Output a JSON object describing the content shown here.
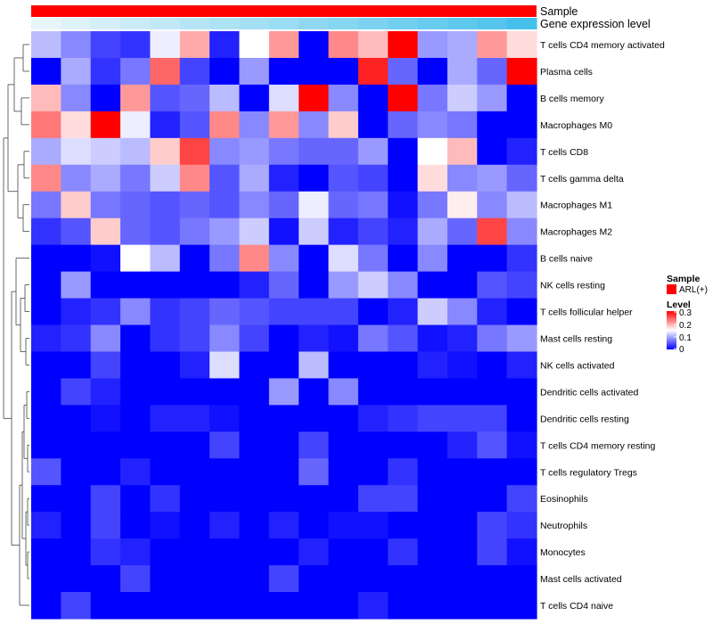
{
  "chart_data": {
    "type": "heatmap",
    "annotations": [
      "Sample",
      "Gene expression level"
    ],
    "rows": [
      "T cells CD4 memory activated",
      "Plasma cells",
      "B cells memory",
      "Macrophages M0",
      "T cells CD8",
      "T cells gamma delta",
      "Macrophages M1",
      "Macrophages M2",
      "B cells naive",
      "NK cells resting",
      "T cells follicular helper",
      "Mast cells resting",
      "NK cells activated",
      "Dendritic cells activated",
      "Dendritic cells resting",
      "T cells CD4 memory resting",
      "T cells regulatory  Tregs",
      "Eosinophils",
      "Neutrophils",
      "Monocytes",
      "Mast cells activated",
      "T cells CD4 naive"
    ],
    "values": [
      [
        0.11,
        0.08,
        0.04,
        0.03,
        0.14,
        0.2,
        0.02,
        0.15,
        0.21,
        0.0,
        0.22,
        0.19,
        0.3,
        0.09,
        0.1,
        0.21,
        0.17
      ],
      [
        0.0,
        0.1,
        0.03,
        0.07,
        0.24,
        0.04,
        0.0,
        0.09,
        0.0,
        0.0,
        0.0,
        0.28,
        0.06,
        0.0,
        0.1,
        0.06,
        0.3
      ],
      [
        0.19,
        0.08,
        0.0,
        0.21,
        0.05,
        0.06,
        0.11,
        0.0,
        0.13,
        0.3,
        0.08,
        0.0,
        0.3,
        0.07,
        0.12,
        0.09,
        0.0
      ],
      [
        0.23,
        0.17,
        0.3,
        0.14,
        0.02,
        0.05,
        0.22,
        0.08,
        0.21,
        0.08,
        0.18,
        0.0,
        0.06,
        0.08,
        0.07,
        0.0,
        0.0
      ],
      [
        0.1,
        0.13,
        0.12,
        0.11,
        0.18,
        0.26,
        0.08,
        0.09,
        0.07,
        0.06,
        0.06,
        0.09,
        0.0,
        0.15,
        0.19,
        0.0,
        0.02
      ],
      [
        0.22,
        0.08,
        0.1,
        0.07,
        0.12,
        0.22,
        0.05,
        0.1,
        0.02,
        0.0,
        0.05,
        0.04,
        0.0,
        0.17,
        0.08,
        0.09,
        0.06
      ],
      [
        0.07,
        0.18,
        0.07,
        0.06,
        0.05,
        0.06,
        0.05,
        0.08,
        0.06,
        0.14,
        0.06,
        0.07,
        0.01,
        0.07,
        0.16,
        0.08,
        0.11
      ],
      [
        0.03,
        0.05,
        0.18,
        0.06,
        0.05,
        0.07,
        0.09,
        0.12,
        0.01,
        0.12,
        0.02,
        0.04,
        0.02,
        0.1,
        0.06,
        0.26,
        0.08
      ],
      [
        0.0,
        0.0,
        0.01,
        0.15,
        0.11,
        0.0,
        0.07,
        0.22,
        0.08,
        0.0,
        0.13,
        0.07,
        0.0,
        0.08,
        0.0,
        0.0,
        0.03
      ],
      [
        0.0,
        0.09,
        0.0,
        0.0,
        0.0,
        0.0,
        0.0,
        0.02,
        0.06,
        0.0,
        0.09,
        0.12,
        0.08,
        0.0,
        0.0,
        0.05,
        0.04
      ],
      [
        0.0,
        0.02,
        0.03,
        0.08,
        0.03,
        0.04,
        0.06,
        0.05,
        0.04,
        0.04,
        0.04,
        0.0,
        0.02,
        0.12,
        0.08,
        0.02,
        0.0
      ],
      [
        0.02,
        0.03,
        0.08,
        0.0,
        0.03,
        0.04,
        0.08,
        0.04,
        0.0,
        0.02,
        0.01,
        0.07,
        0.05,
        0.01,
        0.02,
        0.07,
        0.09
      ],
      [
        0.0,
        0.0,
        0.04,
        0.0,
        0.0,
        0.02,
        0.13,
        0.0,
        0.0,
        0.11,
        0.0,
        0.0,
        0.0,
        0.02,
        0.01,
        0.0,
        0.02
      ],
      [
        0.0,
        0.04,
        0.02,
        0.0,
        0.0,
        0.0,
        0.0,
        0.0,
        0.09,
        0.0,
        0.08,
        0.0,
        0.0,
        0.0,
        0.0,
        0.0,
        0.0
      ],
      [
        0.0,
        0.0,
        0.01,
        0.0,
        0.02,
        0.02,
        0.01,
        0.0,
        0.0,
        0.0,
        0.0,
        0.02,
        0.03,
        0.04,
        0.04,
        0.04,
        0.0
      ],
      [
        0.0,
        0.0,
        0.0,
        0.0,
        0.0,
        0.0,
        0.04,
        0.0,
        0.0,
        0.04,
        0.0,
        0.0,
        0.0,
        0.0,
        0.02,
        0.05,
        0.01
      ],
      [
        0.05,
        0.0,
        0.0,
        0.02,
        0.0,
        0.0,
        0.0,
        0.0,
        0.0,
        0.06,
        0.0,
        0.0,
        0.03,
        0.0,
        0.0,
        0.0,
        0.0
      ],
      [
        0.0,
        0.0,
        0.04,
        0.0,
        0.03,
        0.0,
        0.0,
        0.0,
        0.0,
        0.0,
        0.0,
        0.04,
        0.04,
        0.0,
        0.0,
        0.0,
        0.04
      ],
      [
        0.02,
        0.0,
        0.04,
        0.0,
        0.01,
        0.0,
        0.02,
        0.0,
        0.02,
        0.0,
        0.01,
        0.01,
        0.0,
        0.0,
        0.0,
        0.04,
        0.03
      ],
      [
        0.0,
        0.0,
        0.03,
        0.02,
        0.0,
        0.0,
        0.0,
        0.0,
        0.0,
        0.02,
        0.0,
        0.0,
        0.03,
        0.0,
        0.0,
        0.04,
        0.01
      ],
      [
        0.0,
        0.0,
        0.0,
        0.04,
        0.0,
        0.0,
        0.0,
        0.0,
        0.04,
        0.0,
        0.0,
        0.0,
        0.0,
        0.0,
        0.0,
        0.0,
        0.0
      ],
      [
        0.0,
        0.04,
        0.0,
        0.0,
        0.0,
        0.0,
        0.0,
        0.0,
        0.0,
        0.0,
        0.0,
        0.02,
        0.0,
        0.0,
        0.0,
        0.0,
        0.0
      ]
    ],
    "gene_expression_level": [
      0.0,
      0.06,
      0.12,
      0.18,
      0.24,
      0.3,
      0.36,
      0.42,
      0.48,
      0.54,
      0.6,
      0.66,
      0.72,
      0.78,
      0.84,
      0.9,
      1.0
    ],
    "sample_legend": {
      "title": "Sample",
      "entries": [
        "ARL(+)"
      ],
      "color": "#ff0000"
    },
    "level_legend": {
      "title": "Level",
      "ticks": [
        "0.3",
        "0.2",
        "0.1",
        "0"
      ],
      "range": [
        0,
        0.3
      ]
    },
    "colors": {
      "low": "#0000ff",
      "mid": "#ffffff",
      "high": "#ff0000",
      "expr_low": "#e8f5fb",
      "expr_high": "#45c0ea",
      "sample": "#ff0000"
    },
    "clustering": "rows"
  }
}
